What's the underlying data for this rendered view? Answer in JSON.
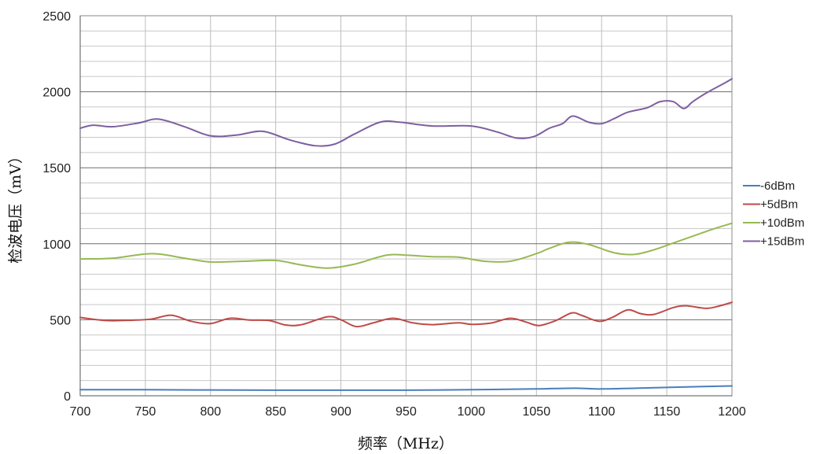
{
  "chart_data": {
    "type": "line",
    "title": "",
    "xlabel": "频率（MHz）",
    "ylabel": "检波电压（mV）",
    "xlim": [
      700,
      1200
    ],
    "ylim": [
      0,
      2500
    ],
    "x_ticks": [
      "700",
      "750",
      "800",
      "850",
      "900",
      "950",
      "1000",
      "1050",
      "1100",
      "1150",
      "1200"
    ],
    "y_ticks": [
      "0",
      "500",
      "1000",
      "1500",
      "2000",
      "2500"
    ],
    "grid": true,
    "legend_position": "right",
    "series": [
      {
        "name": "-6dBm",
        "color": "#4A7EBB",
        "points": [
          [
            700,
            40
          ],
          [
            750,
            40
          ],
          [
            800,
            38
          ],
          [
            850,
            37
          ],
          [
            900,
            37
          ],
          [
            950,
            37
          ],
          [
            1000,
            40
          ],
          [
            1050,
            45
          ],
          [
            1080,
            50
          ],
          [
            1100,
            45
          ],
          [
            1150,
            55
          ],
          [
            1200,
            65
          ]
        ]
      },
      {
        "name": "+5dBm",
        "color": "#BE4B48",
        "points": [
          [
            700,
            515
          ],
          [
            720,
            495
          ],
          [
            740,
            497
          ],
          [
            755,
            505
          ],
          [
            770,
            530
          ],
          [
            785,
            490
          ],
          [
            800,
            475
          ],
          [
            815,
            510
          ],
          [
            830,
            498
          ],
          [
            845,
            495
          ],
          [
            858,
            465
          ],
          [
            870,
            468
          ],
          [
            890,
            520
          ],
          [
            900,
            500
          ],
          [
            912,
            455
          ],
          [
            925,
            480
          ],
          [
            940,
            510
          ],
          [
            955,
            480
          ],
          [
            970,
            468
          ],
          [
            990,
            480
          ],
          [
            1000,
            470
          ],
          [
            1015,
            478
          ],
          [
            1030,
            510
          ],
          [
            1042,
            485
          ],
          [
            1052,
            462
          ],
          [
            1065,
            495
          ],
          [
            1077,
            545
          ],
          [
            1085,
            528
          ],
          [
            1098,
            490
          ],
          [
            1108,
            515
          ],
          [
            1120,
            565
          ],
          [
            1130,
            540
          ],
          [
            1140,
            535
          ],
          [
            1155,
            580
          ],
          [
            1165,
            592
          ],
          [
            1180,
            575
          ],
          [
            1190,
            590
          ],
          [
            1200,
            615
          ]
        ]
      },
      {
        "name": "+10dBm",
        "color": "#98B954",
        "points": [
          [
            700,
            900
          ],
          [
            725,
            905
          ],
          [
            755,
            935
          ],
          [
            780,
            905
          ],
          [
            800,
            880
          ],
          [
            825,
            885
          ],
          [
            850,
            890
          ],
          [
            870,
            860
          ],
          [
            890,
            840
          ],
          [
            910,
            865
          ],
          [
            935,
            925
          ],
          [
            950,
            925
          ],
          [
            970,
            915
          ],
          [
            990,
            912
          ],
          [
            1010,
            885
          ],
          [
            1030,
            885
          ],
          [
            1050,
            935
          ],
          [
            1060,
            970
          ],
          [
            1075,
            1010
          ],
          [
            1090,
            995
          ],
          [
            1110,
            940
          ],
          [
            1125,
            930
          ],
          [
            1140,
            960
          ],
          [
            1160,
            1020
          ],
          [
            1185,
            1095
          ],
          [
            1200,
            1135
          ]
        ]
      },
      {
        "name": "+15dBm",
        "color": "#7D60A0",
        "points": [
          [
            700,
            1760
          ],
          [
            710,
            1780
          ],
          [
            725,
            1770
          ],
          [
            745,
            1795
          ],
          [
            760,
            1820
          ],
          [
            780,
            1770
          ],
          [
            800,
            1710
          ],
          [
            820,
            1715
          ],
          [
            840,
            1740
          ],
          [
            860,
            1685
          ],
          [
            880,
            1645
          ],
          [
            895,
            1655
          ],
          [
            910,
            1720
          ],
          [
            930,
            1800
          ],
          [
            945,
            1800
          ],
          [
            970,
            1775
          ],
          [
            1000,
            1775
          ],
          [
            1020,
            1735
          ],
          [
            1035,
            1695
          ],
          [
            1048,
            1705
          ],
          [
            1060,
            1760
          ],
          [
            1070,
            1790
          ],
          [
            1078,
            1840
          ],
          [
            1090,
            1800
          ],
          [
            1100,
            1790
          ],
          [
            1110,
            1825
          ],
          [
            1120,
            1865
          ],
          [
            1135,
            1895
          ],
          [
            1145,
            1935
          ],
          [
            1155,
            1935
          ],
          [
            1163,
            1890
          ],
          [
            1170,
            1935
          ],
          [
            1180,
            1990
          ],
          [
            1195,
            2060
          ],
          [
            1200,
            2085
          ]
        ]
      }
    ]
  }
}
